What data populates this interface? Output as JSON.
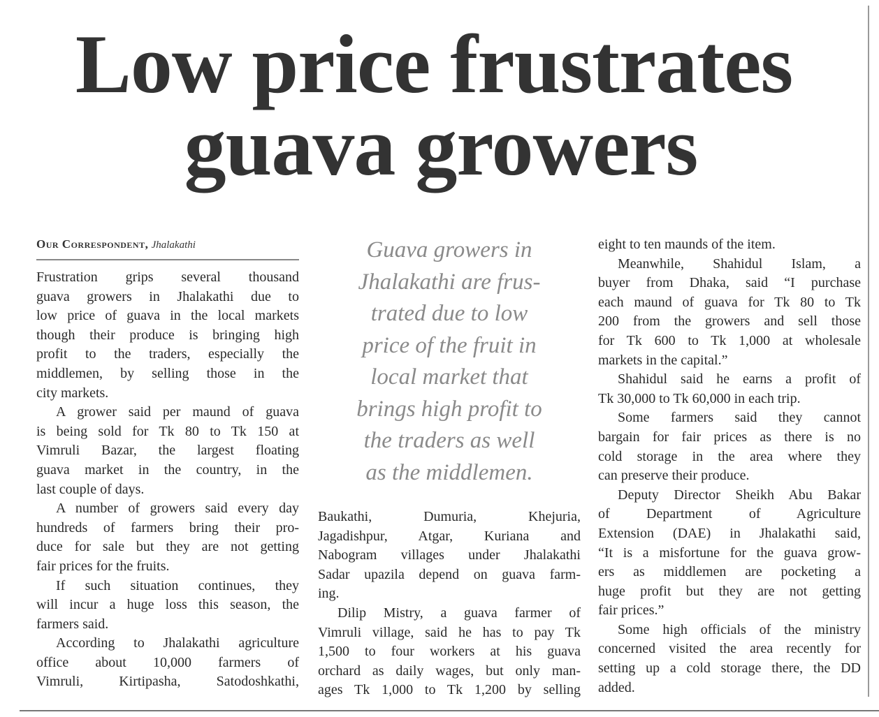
{
  "headline": {
    "line1": "Low price frustrates",
    "line2": "guava growers"
  },
  "byline": {
    "author": "Our Correspondent,",
    "place": "Jhalakathi"
  },
  "pull_quote": [
    "Guava growers in",
    "Jhalakathi are frus-",
    "trated due to low",
    "price of the fruit in",
    "local market that",
    "brings high profit to",
    "the traders as well",
    "as the middlemen."
  ],
  "columns": [
    {
      "paragraphs": [
        {
          "indent": false,
          "continues": false,
          "lines": [
            "Frustration grips several thousand",
            "guava growers in Jhalakathi due to",
            "low price of guava in the local markets",
            "though their produce is bringing high",
            "profit to the traders, especially the",
            "middlemen, by selling those in the",
            "city markets."
          ]
        },
        {
          "indent": true,
          "continues": false,
          "lines": [
            "A grower said per maund of guava",
            "is being sold for Tk 80 to Tk 150 at",
            "Vimruli Bazar, the largest floating",
            "guava market in the country, in the",
            "last couple of days."
          ]
        },
        {
          "indent": true,
          "continues": false,
          "lines": [
            "A number of growers said every day",
            "hundreds of farmers bring their pro-",
            "duce for sale but they are not getting",
            "fair prices for the fruits."
          ]
        },
        {
          "indent": true,
          "continues": false,
          "lines": [
            "If such situation continues, they",
            "will incur a huge loss this season, the",
            "farmers said."
          ]
        },
        {
          "indent": true,
          "continues": true,
          "lines": [
            "According to Jhalakathi agriculture",
            "office about 10,000 farmers of",
            "Vimruli, Kirtipasha, Satodoshkathi,"
          ]
        }
      ]
    },
    {
      "paragraphs": [
        {
          "indent": false,
          "continues": false,
          "lines": [
            "Baukathi, Dumuria, Khejuria,",
            "Jagadishpur, Atgar, Kuriana and",
            "Nabogram villages under Jhalakathi",
            "Sadar upazila depend on guava farm-",
            "ing."
          ]
        },
        {
          "indent": true,
          "continues": true,
          "lines": [
            "Dilip Mistry, a guava farmer of",
            "Vimruli village, said he has to pay Tk",
            "1,500 to four workers at his guava",
            "orchard as daily wages, but only man-",
            "ages Tk 1,000 to Tk 1,200 by selling"
          ]
        }
      ]
    },
    {
      "paragraphs": [
        {
          "indent": false,
          "continues": false,
          "lines": [
            "eight to ten maunds of the item."
          ]
        },
        {
          "indent": true,
          "continues": false,
          "lines": [
            "Meanwhile, Shahidul Islam, a",
            "buyer from Dhaka, said “I purchase",
            "each maund of guava for Tk 80 to Tk",
            "200 from the growers and sell those",
            "for Tk 600 to Tk 1,000 at wholesale",
            "markets in the capital.”"
          ]
        },
        {
          "indent": true,
          "continues": false,
          "lines": [
            "Shahidul said he earns a profit of",
            "Tk 30,000 to Tk 60,000 in each trip."
          ]
        },
        {
          "indent": true,
          "continues": false,
          "lines": [
            "Some farmers said they cannot",
            "bargain for fair prices as there is no",
            "cold storage in the area where they",
            "can preserve their produce."
          ]
        },
        {
          "indent": true,
          "continues": false,
          "lines": [
            "Deputy Director Sheikh Abu Bakar",
            "of Department of Agriculture",
            "Extension (DAE) in Jhalakathi said,",
            "“It is a misfortune for the guava grow-",
            "ers as middlemen are pocketing a",
            "huge profit but they are not getting",
            "fair prices.”"
          ]
        },
        {
          "indent": true,
          "continues": false,
          "lines": [
            "Some high officials of the ministry",
            "concerned visited the area recently for",
            "setting up a cold storage there, the DD",
            "added."
          ]
        }
      ]
    }
  ]
}
